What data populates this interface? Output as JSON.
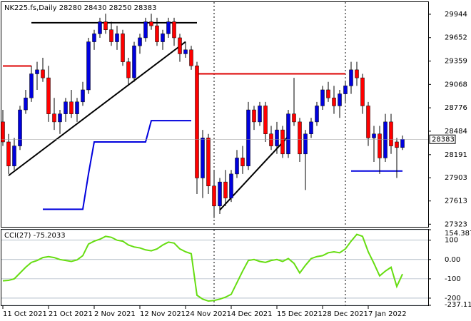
{
  "chart_data": [
    {
      "type": "candlestick",
      "title": "NK225.fs,Daily 28280 28430 28250 28383",
      "categories": [
        "11 Oct 2021",
        null,
        null,
        null,
        null,
        null,
        null,
        null,
        "21 Oct 2021",
        null,
        null,
        null,
        null,
        null,
        null,
        null,
        "2 Nov 2021",
        null,
        null,
        null,
        null,
        null,
        null,
        null,
        "12 Nov 2021",
        null,
        null,
        null,
        null,
        null,
        null,
        null,
        "24 Nov 2021",
        null,
        null,
        null,
        null,
        null,
        null,
        null,
        "4 Dec 2021",
        null,
        null,
        null,
        null,
        null,
        null,
        null,
        "15 Dec 2021",
        null,
        null,
        null,
        null,
        null,
        null,
        null,
        "28 Dec 2021",
        null,
        null,
        null,
        null,
        null,
        null,
        null,
        "7 Jan 2022",
        null,
        null,
        null,
        null,
        null,
        null
      ],
      "ohlc": [
        [
          28600,
          28750,
          28300,
          28350
        ],
        [
          28350,
          28450,
          27950,
          28050
        ],
        [
          28050,
          28400,
          28000,
          28300
        ],
        [
          28300,
          28800,
          28250,
          28750
        ],
        [
          28750,
          29000,
          28700,
          28900
        ],
        [
          28900,
          29300,
          28850,
          29200
        ],
        [
          29200,
          29350,
          29000,
          29250
        ],
        [
          29250,
          29400,
          29100,
          29150
        ],
        [
          29150,
          29300,
          28600,
          28700
        ],
        [
          28700,
          28900,
          28500,
          28600
        ],
        [
          28600,
          28750,
          28450,
          28700
        ],
        [
          28700,
          28900,
          28600,
          28850
        ],
        [
          28850,
          29000,
          28650,
          28700
        ],
        [
          28700,
          28900,
          28600,
          28850
        ],
        [
          28850,
          29100,
          28800,
          29000
        ],
        [
          29000,
          29650,
          28950,
          29600
        ],
        [
          29600,
          29750,
          29500,
          29700
        ],
        [
          29700,
          29900,
          29650,
          29850
        ],
        [
          29850,
          29950,
          29700,
          29750
        ],
        [
          29750,
          29850,
          29550,
          29600
        ],
        [
          29600,
          29800,
          29500,
          29700
        ],
        [
          29700,
          29750,
          29300,
          29350
        ],
        [
          29350,
          29400,
          29050,
          29150
        ],
        [
          29150,
          29600,
          29100,
          29550
        ],
        [
          29550,
          29700,
          29450,
          29650
        ],
        [
          29650,
          29900,
          29600,
          29850
        ],
        [
          29850,
          29950,
          29750,
          29800
        ],
        [
          29800,
          29900,
          29550,
          29600
        ],
        [
          29600,
          29750,
          29500,
          29700
        ],
        [
          29700,
          29900,
          29650,
          29850
        ],
        [
          29850,
          29900,
          29550,
          29650
        ],
        [
          29650,
          29700,
          29350,
          29450
        ],
        [
          29450,
          29600,
          29400,
          29500
        ],
        [
          29500,
          29550,
          29250,
          29300
        ],
        [
          29300,
          29350,
          27700,
          27900
        ],
        [
          27900,
          28500,
          27650,
          28400
        ],
        [
          28400,
          28450,
          27700,
          27800
        ],
        [
          27800,
          28000,
          27400,
          27550
        ],
        [
          27550,
          27900,
          27450,
          27850
        ],
        [
          27850,
          28000,
          27550,
          27650
        ],
        [
          27650,
          28000,
          27600,
          27950
        ],
        [
          27950,
          28250,
          27900,
          28150
        ],
        [
          28150,
          28300,
          27950,
          28050
        ],
        [
          28050,
          28850,
          28000,
          28750
        ],
        [
          28750,
          28800,
          28500,
          28600
        ],
        [
          28600,
          28850,
          28550,
          28800
        ],
        [
          28800,
          28850,
          28350,
          28450
        ],
        [
          28450,
          28550,
          28250,
          28300
        ],
        [
          28300,
          28600,
          28200,
          28500
        ],
        [
          28500,
          28550,
          28150,
          28200
        ],
        [
          28200,
          28750,
          28150,
          28700
        ],
        [
          28700,
          29150,
          28550,
          28600
        ],
        [
          28600,
          28650,
          28100,
          28200
        ],
        [
          28200,
          28500,
          27750,
          28450
        ],
        [
          28450,
          28650,
          28400,
          28600
        ],
        [
          28600,
          28850,
          28550,
          28800
        ],
        [
          28800,
          29050,
          28750,
          29000
        ],
        [
          29000,
          29100,
          28850,
          28900
        ],
        [
          28900,
          29050,
          28700,
          28800
        ],
        [
          28800,
          29000,
          28650,
          28950
        ],
        [
          28950,
          29100,
          28850,
          29050
        ],
        [
          29050,
          29350,
          28950,
          29250
        ],
        [
          29250,
          29350,
          29050,
          29150
        ],
        [
          29150,
          29200,
          28700,
          28800
        ],
        [
          28800,
          28850,
          28300,
          28400
        ],
        [
          28400,
          28550,
          28100,
          28450
        ],
        [
          28450,
          28550,
          27950,
          28150
        ],
        [
          28150,
          28700,
          28100,
          28600
        ],
        [
          28600,
          28700,
          28200,
          28300
        ],
        [
          28350,
          28400,
          27900,
          28280
        ],
        [
          28280,
          28430,
          28250,
          28383
        ]
      ],
      "up_color": "#0000dd",
      "down_color": "#ff0000",
      "series": [
        {
          "color": "#0000dd",
          "values": [
            null,
            null,
            null,
            null,
            null,
            null,
            null,
            27509,
            27509,
            27509,
            27509,
            27509,
            27509,
            27509,
            27509,
            27952,
            28350,
            28350,
            28350,
            28350,
            28350,
            28350,
            28350,
            28350,
            28350,
            28350,
            28616,
            28616,
            28616,
            28616,
            28616,
            28616,
            28616,
            28616,
            null,
            null,
            null,
            null,
            null,
            null,
            null,
            null,
            null,
            null,
            null,
            null,
            null,
            null,
            null,
            null,
            null,
            null,
            null,
            null,
            null,
            null,
            null,
            null,
            null,
            null,
            null,
            27987,
            27987,
            27987,
            27987,
            27987,
            27987,
            27987,
            27987,
            27987,
            27987
          ]
        }
      ],
      "lines": [
        {
          "color": "#000000",
          "x": [
            1,
            32
          ],
          "y": [
            27930,
            29600
          ]
        },
        {
          "color": "#000000",
          "x": [
            5,
            34
          ],
          "y": [
            29838,
            29838
          ]
        },
        {
          "color": "#000000",
          "x": [
            38,
            50
          ],
          "y": [
            27500,
            28420
          ]
        },
        {
          "color": "#dd0000",
          "x": [
            34,
            60
          ],
          "y": [
            29200,
            29200
          ]
        },
        {
          "color": "#dd0000",
          "x": [
            0,
            5
          ],
          "y": [
            29298,
            29298
          ]
        }
      ],
      "last_price": 28383,
      "ylim": [
        27290,
        30095
      ],
      "yticks": [
        29944,
        29652,
        29359,
        29068,
        28776,
        28484,
        28191,
        27903,
        27613,
        27323
      ]
    },
    {
      "type": "line",
      "title": "CCI(27) -75.2033",
      "color": "#66dd11",
      "values": [
        -110,
        -108,
        -100,
        -70,
        -40,
        -15,
        -5,
        10,
        15,
        10,
        0,
        -5,
        -10,
        -2,
        20,
        80,
        95,
        105,
        120,
        115,
        100,
        95,
        75,
        65,
        60,
        50,
        45,
        55,
        75,
        90,
        85,
        55,
        40,
        30,
        -185,
        -205,
        -215,
        -212,
        -205,
        -195,
        -180,
        -120,
        -60,
        -5,
        0,
        -10,
        -15,
        -5,
        0,
        -10,
        5,
        -20,
        -70,
        -30,
        5,
        15,
        20,
        35,
        40,
        35,
        55,
        95,
        130,
        120,
        40,
        -20,
        -85,
        -60,
        -40,
        -140,
        -75.2033
      ],
      "ylim": [
        -237.112,
        154.3875
      ],
      "yticks": [
        154.3875,
        100,
        {
          "value": 0,
          "label": "0.00"
        },
        -100,
        -200,
        -237.112
      ]
    }
  ]
}
